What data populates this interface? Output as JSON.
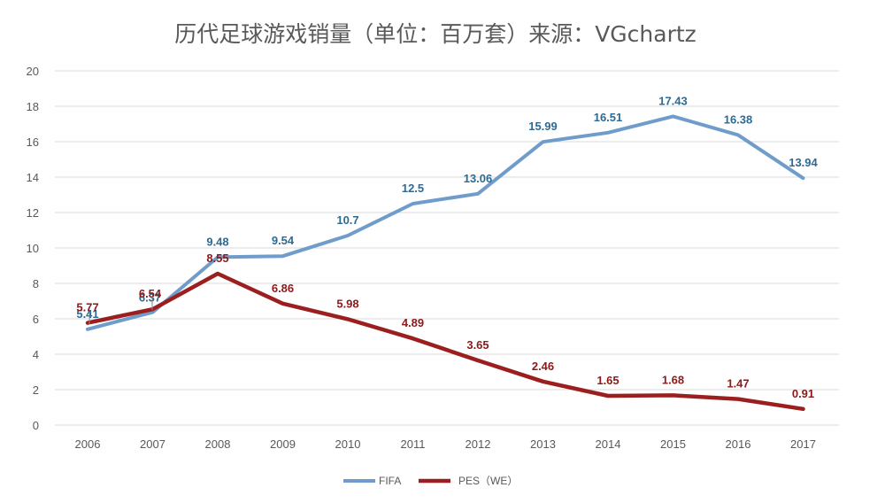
{
  "chart_data": {
    "type": "line",
    "title": "历代足球游戏销量（单位：百万套）来源：VGchartz",
    "xlabel": "",
    "ylabel": "",
    "categories": [
      "2006",
      "2007",
      "2008",
      "2009",
      "2010",
      "2011",
      "2012",
      "2013",
      "2014",
      "2015",
      "2016",
      "2017"
    ],
    "ylim": [
      0,
      20
    ],
    "yticks": [
      0,
      2,
      4,
      6,
      8,
      10,
      12,
      14,
      16,
      18,
      20
    ],
    "grid": true,
    "legend_position": "bottom",
    "series": [
      {
        "name": "FIFA",
        "color": "#6F9CCA",
        "label_color": "#2E6A93",
        "values": [
          5.41,
          6.37,
          9.48,
          9.54,
          10.7,
          12.5,
          13.06,
          15.99,
          16.51,
          17.43,
          16.38,
          13.94
        ],
        "labels": [
          "5.41",
          "6.37",
          "9.48",
          "9.54",
          "10.7",
          "12.5",
          "13.06",
          "15.99",
          "16.51",
          "17.43",
          "16.38",
          "13.94"
        ]
      },
      {
        "name": "PES（WE）",
        "color": "#9C1F1F",
        "label_color": "#8B1A1A",
        "values": [
          5.77,
          6.54,
          8.55,
          6.86,
          5.98,
          4.89,
          3.65,
          2.46,
          1.65,
          1.68,
          1.47,
          0.91
        ],
        "labels": [
          "5.77",
          "6.54",
          "8.55",
          "6.86",
          "5.98",
          "4.89",
          "3.65",
          "2.46",
          "1.65",
          "1.68",
          "1.47",
          "0.91"
        ]
      }
    ]
  }
}
